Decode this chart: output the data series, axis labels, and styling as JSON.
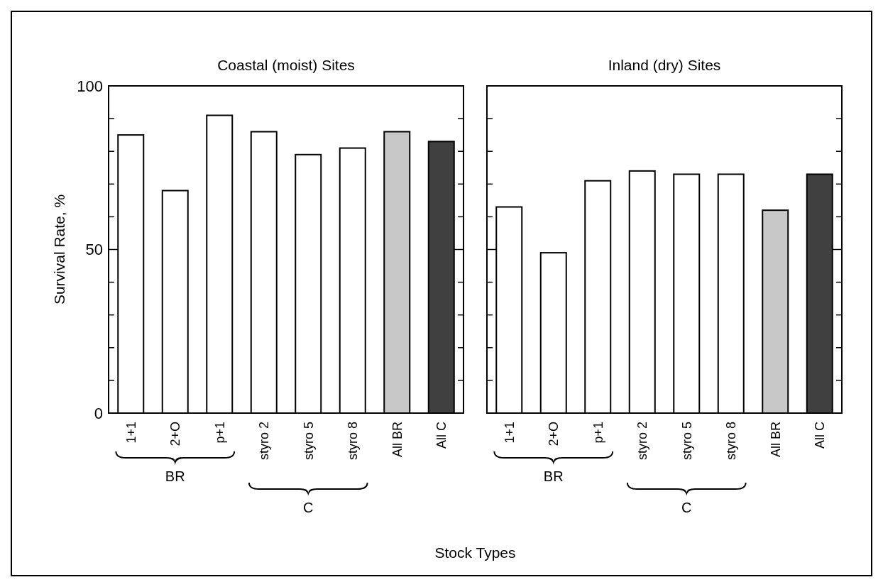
{
  "chart_data": [
    {
      "type": "bar",
      "title": "Coastal (moist) Sites",
      "ylabel": "Survival Rate, %",
      "xlabel": "Stock Types",
      "categories": [
        "1+1",
        "2+O",
        "p+1",
        "styro 2",
        "styro 5",
        "styro 8",
        "All BR",
        "All C"
      ],
      "values": [
        85,
        68,
        91,
        86,
        79,
        81,
        86,
        83
      ],
      "colors": [
        "#ffffff",
        "#ffffff",
        "#ffffff",
        "#ffffff",
        "#ffffff",
        "#ffffff",
        "#c8c8c8",
        "#404040"
      ],
      "ylim": [
        0,
        100
      ],
      "yticks": [
        0,
        {
          "value": 10,
          "label": null
        },
        {
          "value": 20,
          "label": null
        },
        {
          "value": 30,
          "label": null
        },
        {
          "value": 40,
          "label": null
        },
        50,
        {
          "value": 60,
          "label": null
        },
        {
          "value": 70,
          "label": null
        },
        {
          "value": 80,
          "label": null
        },
        {
          "value": 90,
          "label": null
        },
        100
      ],
      "annotations": [
        "BR",
        "C"
      ],
      "grid": false
    },
    {
      "type": "bar",
      "title": "Inland (dry) Sites",
      "categories": [
        "1+1",
        "2+O",
        "p+1",
        "styro 2",
        "styro 5",
        "styro 8",
        "All BR",
        "All C"
      ],
      "values": [
        63,
        49,
        71,
        74,
        73,
        73,
        62,
        73
      ],
      "colors": [
        "#ffffff",
        "#ffffff",
        "#ffffff",
        "#ffffff",
        "#ffffff",
        "#ffffff",
        "#c8c8c8",
        "#404040"
      ],
      "ylim": [
        0,
        100
      ],
      "yticks": [
        0,
        {
          "value": 10,
          "label": null
        },
        {
          "value": 20,
          "label": null
        },
        {
          "value": 30,
          "label": null
        },
        {
          "value": 40,
          "label": null
        },
        50,
        {
          "value": 60,
          "label": null
        },
        {
          "value": 70,
          "label": null
        },
        {
          "value": 80,
          "label": null
        },
        {
          "value": 90,
          "label": null
        },
        100
      ],
      "tick_labels": "x",
      "annotations": [
        "BR",
        "C"
      ],
      "grid": false
    }
  ]
}
